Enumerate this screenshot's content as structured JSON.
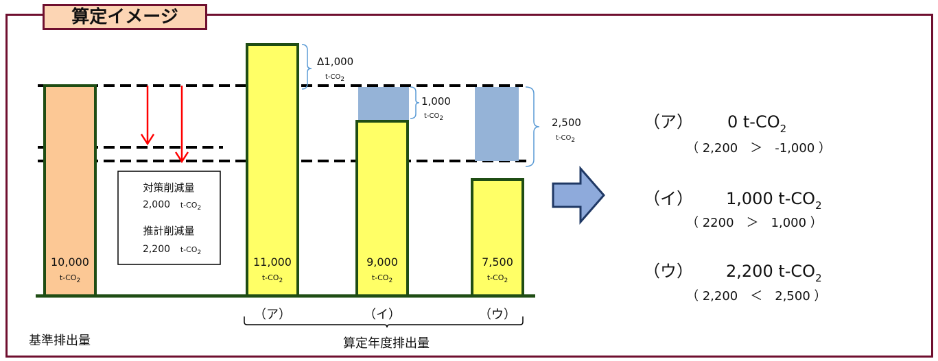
{
  "header": {
    "title": "算定イメージ"
  },
  "baseline": {
    "value_label": "10,000",
    "unit": "t-CO2",
    "caption": "基準排出量"
  },
  "bars": [
    {
      "id": "a",
      "value_label": "11,000",
      "unit": "t-CO2",
      "label": "（ア）"
    },
    {
      "id": "i",
      "value_label": "9,000",
      "unit": "t-CO2",
      "label": "（イ）"
    },
    {
      "id": "u",
      "value_label": "7,500",
      "unit": "t-CO2",
      "label": "（ウ）"
    }
  ],
  "annotations": {
    "a_delta": "Δ1,000",
    "a_delta_unit": "t-CO2",
    "i_diff": "1,000",
    "i_diff_unit": "t-CO2",
    "u_diff": "2,500",
    "u_diff_unit": "t-CO2"
  },
  "reduction_box": {
    "planned_label": "対策削減量",
    "planned_value": "2,000",
    "estimated_label": "推計削減量",
    "estimated_value": "2,200",
    "unit": "t-CO2"
  },
  "group_caption": "算定年度排出量",
  "results": [
    {
      "label": "（ア）",
      "value": "0 t-CO",
      "sub": "2",
      "comparison": "（ 2,200　＞　-1,000 ）"
    },
    {
      "label": "（イ）",
      "value": "1,000 t-CO",
      "sub": "2",
      "comparison": "（ 2200　＞　1,000 ）"
    },
    {
      "label": "（ウ）",
      "value": "2,200 t-CO",
      "sub": "2",
      "comparison": "（ 2,200　＜　2,500 ）"
    }
  ],
  "colors": {
    "frame": "#6f0f2f",
    "tab_fill": "#fcd5b4",
    "baseline_bar": "#fcc895",
    "bar_fill": "#ffff66",
    "bar_stroke": "#1f4d14",
    "blue_box": "#95b3d7",
    "arrow_red": "#ff0000",
    "bracket": "#5b9bd5",
    "big_arrow_fill": "#8eaadb",
    "big_arrow_stroke": "#1f3864"
  }
}
